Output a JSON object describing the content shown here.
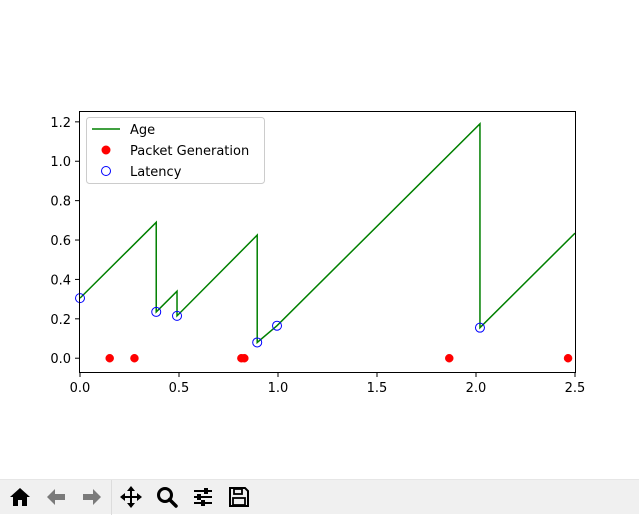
{
  "chart_data": {
    "type": "line",
    "xlim": [
      0.0,
      2.5
    ],
    "ylim": [
      -0.07,
      1.25
    ],
    "xticks": [
      0.0,
      0.5,
      1.0,
      1.5,
      2.0,
      2.5
    ],
    "xtick_labels": [
      "0.0",
      "0.5",
      "1.0",
      "1.5",
      "2.0",
      "2.5"
    ],
    "yticks": [
      0.0,
      0.2,
      0.4,
      0.6,
      0.8,
      1.0,
      1.2
    ],
    "ytick_labels": [
      "0.0",
      "0.2",
      "0.4",
      "0.6",
      "0.8",
      "1.0",
      "1.2"
    ],
    "grid": false,
    "legend": "upper-left",
    "series": [
      {
        "name": "Age",
        "kind": "line",
        "color": "#008000",
        "x": [
          0.0,
          0.385,
          0.385,
          0.49,
          0.49,
          0.895,
          0.895,
          0.995,
          2.02,
          2.02,
          2.5
        ],
        "y": [
          0.305,
          0.69,
          0.235,
          0.34,
          0.215,
          0.625,
          0.08,
          0.165,
          1.19,
          0.155,
          0.635
        ]
      },
      {
        "name": "Packet Generation",
        "kind": "scatter",
        "marker": "filled-circle",
        "color": "#ff0000",
        "x": [
          0.15,
          0.275,
          0.815,
          0.83,
          1.865,
          2.465
        ],
        "y": [
          0.0,
          0.0,
          0.0,
          0.0,
          0.0,
          0.0
        ]
      },
      {
        "name": "Latency",
        "kind": "scatter",
        "marker": "open-circle",
        "color": "#0000ff",
        "x": [
          0.0,
          0.385,
          0.49,
          0.895,
          0.995,
          2.02
        ],
        "y": [
          0.305,
          0.235,
          0.215,
          0.08,
          0.165,
          0.155
        ]
      }
    ]
  },
  "toolbar": {
    "icons": [
      "home-icon",
      "back-arrow-icon",
      "forward-arrow-icon",
      "pan-icon",
      "zoom-icon",
      "configure-subplots-icon",
      "save-icon"
    ]
  }
}
